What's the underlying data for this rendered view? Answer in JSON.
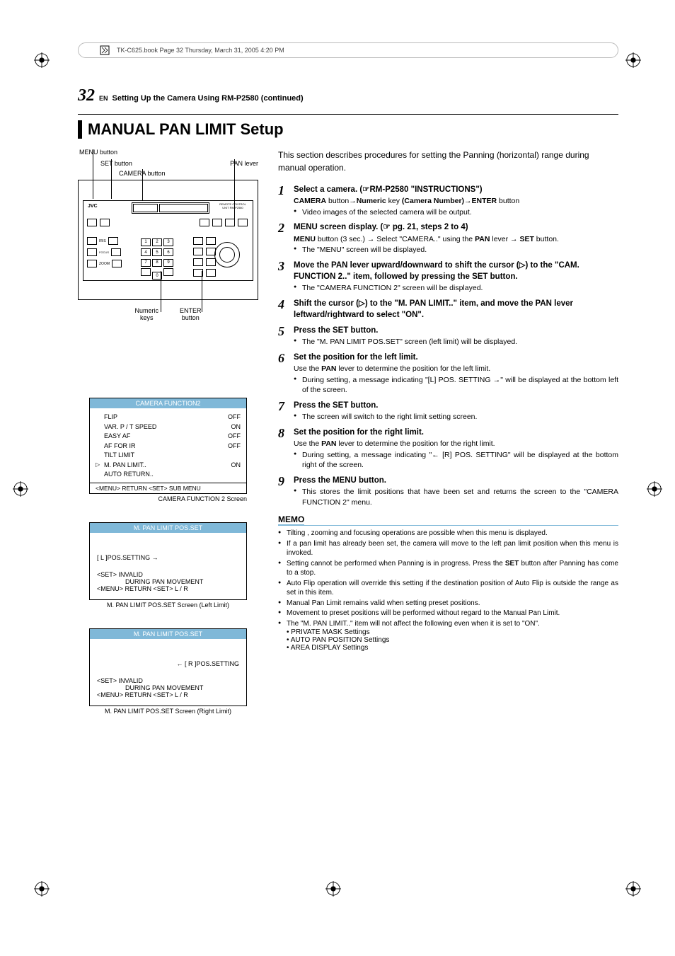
{
  "book_header": "TK-C625.book  Page 32  Thursday, March 31, 2005  4:20 PM",
  "page_number": "32",
  "lang": "EN",
  "breadcrumb": "Setting Up the Camera Using RM-P2580 (continued)",
  "title": "MANUAL PAN LIMIT Setup",
  "labels": {
    "menu_btn": "MENU button",
    "set_btn": "SET button",
    "camera_btn": "CAMERA button",
    "pan_lever": "PAN lever",
    "numeric_keys": "Numeric\nkeys",
    "enter_btn": "ENTER\nbutton"
  },
  "menu_screen": {
    "title": "CAMERA  FUNCTION2",
    "rows": [
      {
        "l": "FLIP",
        "r": "OFF"
      },
      {
        "l": "VAR. P / T  SPEED",
        "r": "ON"
      },
      {
        "l": "EASY  AF",
        "r": "OFF"
      },
      {
        "l": "AF  FOR  IR",
        "r": "OFF"
      },
      {
        "l": "TILT  LIMIT",
        "r": ""
      },
      {
        "l": "M. PAN  LIMIT..",
        "r": "ON",
        "sel": true
      },
      {
        "l": "AUTO  RETURN..",
        "r": ""
      }
    ],
    "footer": "<MENU> RETURN  <SET> SUB  MENU",
    "caption": "CAMERA FUNCTION 2 Screen"
  },
  "pos_left": {
    "title": "M. PAN  LIMIT POS.SET",
    "body1": "[ L ]POS.SETTING →",
    "body2a": "<SET> INVALID",
    "body2b": "DURING  PAN  MOVEMENT",
    "body2c": "<MENU> RETURN  <SET> L / R",
    "caption": "M. PAN LIMIT POS.SET Screen (Left Limit)"
  },
  "pos_right": {
    "title": "M. PAN  LIMIT POS.SET",
    "body1": "←  [ R ]POS.SETTING",
    "body2a": "<SET> INVALID",
    "body2b": "DURING  PAN  MOVEMENT",
    "body2c": "<MENU> RETURN  <SET> L / R",
    "caption": "M. PAN LIMIT POS.SET Screen (Right Limit)"
  },
  "intro": "This section describes procedures for setting the Panning (horizontal) range during manual operation.",
  "steps": [
    {
      "n": "1",
      "head": "Select a camera. (☞RM-P2580 \"INSTRUCTIONS\")",
      "sub": "<b>CAMERA</b> button→<b>Numeric</b> key <b>(Camera Number)</b>→<b>ENTER</b> button",
      "bullets": [
        "Video images of the selected camera will be output."
      ]
    },
    {
      "n": "2",
      "head": "MENU screen display. (☞ pg. 21, steps 2 to 4)",
      "sub": "<b>MENU</b> button (3 sec.) → Select \"CAMERA..\" using the <b>PAN</b> lever → <b>SET</b> button.",
      "bullets": [
        "The \"MENU\" screen will be displayed."
      ]
    },
    {
      "n": "3",
      "head": "Move the PAN lever upward/downward to shift the cursor (▷) to the \"CAM. FUNCTION 2..\" item, followed by pressing the SET button.",
      "bullets": [
        "The \"CAMERA FUNCTION 2\" screen will be displayed."
      ]
    },
    {
      "n": "4",
      "head": "Shift the cursor (▷) to the \"M. PAN LIMIT..\" item, and move the PAN lever leftward/rightward to select \"ON\"."
    },
    {
      "n": "5",
      "head": "Press the SET button.",
      "bullets": [
        "The \"M. PAN LIMIT POS.SET\" screen (left limit) will be displayed."
      ]
    },
    {
      "n": "6",
      "head": "Set the position for the left limit.",
      "sub": "Use the <b>PAN</b> lever to determine the position for the left limit.",
      "bullets": [
        "During setting, a message indicating \"[L] POS. SETTING →\" will be displayed at the bottom left of the screen."
      ]
    },
    {
      "n": "7",
      "head": "Press the SET button.",
      "bullets": [
        "The screen will switch to the right limit setting screen."
      ]
    },
    {
      "n": "8",
      "head": "Set the position for the right limit.",
      "sub": "Use the <b>PAN</b> lever to determine the position for the right limit.",
      "bullets": [
        "During setting, a message indicating \"← [R] POS. SETTING\" will be displayed at the bottom right of the screen."
      ]
    },
    {
      "n": "9",
      "head": "Press the MENU button.",
      "bullets": [
        "This stores the limit positions that have been set and returns the screen to the \"CAMERA FUNCTION 2\" menu."
      ]
    }
  ],
  "memo_title": "MEMO",
  "memo": [
    "Tilting , zooming and focusing operations are possible when this menu is displayed.",
    "If a pan limit has already been set, the camera will move to the left pan limit position when this menu is invoked.",
    "Setting cannot be performed when Panning is in progress. Press the <b>SET</b> button after Panning has come to a stop.",
    "Auto Flip operation will override this setting if the destination position of Auto Flip is outside the range as set in this item.",
    "Manual Pan Limit remains valid when setting preset positions.",
    "Movement to preset positions will be performed without regard to the Manual Pan Limit.",
    "The \"M. PAN LIMIT..\" item will not affect the following even when it is set to \"ON\"."
  ],
  "memo_sub": [
    "PRIVATE MASK Settings",
    "AUTO PAN POSITION Settings",
    "AREA DISPLAY Settings"
  ],
  "colors": {
    "accent": "#7FB8D8"
  }
}
